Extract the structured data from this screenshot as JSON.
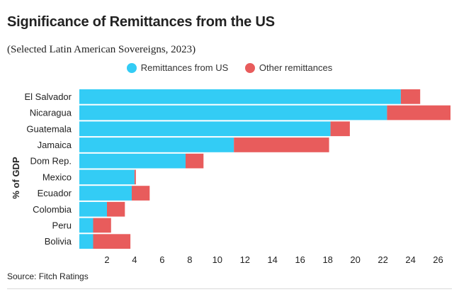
{
  "chart_data": {
    "type": "bar",
    "orientation": "horizontal",
    "stacked": true,
    "title": "Significance of Remittances from the US",
    "subtitle": "(Selected Latin American Sovereigns, 2023)",
    "ylabel": "% of GDP",
    "xlabel": "",
    "categories": [
      "El Salvador",
      "Nicaragua",
      "Guatemala",
      "Jamaica",
      "Dom Rep.",
      "Mexico",
      "Ecuador",
      "Colombia",
      "Peru",
      "Bolivia"
    ],
    "series": [
      {
        "name": "Remittances from US",
        "color": "#33ccf5",
        "values": [
          23.3,
          22.3,
          18.2,
          11.2,
          7.7,
          4.0,
          3.8,
          2.0,
          1.0,
          1.0
        ]
      },
      {
        "name": "Other remittances",
        "color": "#e85c5c",
        "values": [
          1.4,
          4.6,
          1.4,
          6.9,
          1.3,
          0.1,
          1.3,
          1.3,
          1.3,
          2.7
        ]
      }
    ],
    "xticks": [
      2,
      4,
      6,
      8,
      10,
      12,
      14,
      16,
      18,
      20,
      22,
      24,
      26
    ],
    "xlim": [
      0.0,
      27.0
    ],
    "grid": false,
    "legend_position": "top-center",
    "source": "Source: Fitch Ratings"
  }
}
